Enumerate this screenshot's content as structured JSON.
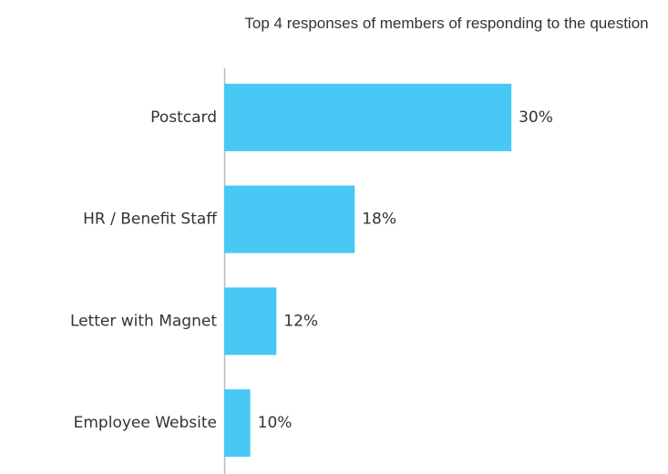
{
  "chart_data": {
    "type": "bar",
    "orientation": "horizontal",
    "title": "Top 4 responses of members of responding to the question",
    "categories": [
      "Postcard",
      "HR / Benefit Staff",
      "Letter with Magnet",
      "Employee Website"
    ],
    "values": [
      30,
      18,
      12,
      10
    ],
    "value_labels": [
      "30%",
      "18%",
      "12%",
      "10%"
    ],
    "color": "#47c8f5",
    "xlim": [
      8,
      42
    ]
  }
}
